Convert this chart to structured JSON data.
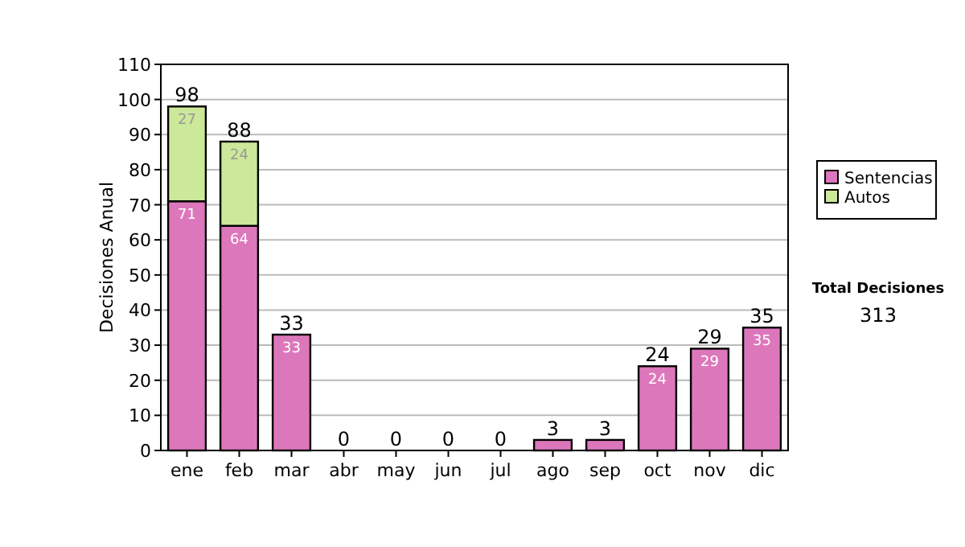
{
  "chart_data": {
    "type": "bar",
    "stacked": true,
    "ylabel": "Decisiones Anual",
    "categories": [
      "ene",
      "feb",
      "mar",
      "abr",
      "may",
      "jun",
      "jul",
      "ago",
      "sep",
      "oct",
      "nov",
      "dic"
    ],
    "series": [
      {
        "name": "Sentencias",
        "color": "#dd77bb",
        "values": [
          71,
          64,
          33,
          0,
          0,
          0,
          0,
          3,
          3,
          24,
          29,
          35
        ],
        "value_labels": [
          "71",
          "64",
          "33",
          null,
          null,
          null,
          null,
          null,
          null,
          "24",
          "29",
          "35"
        ]
      },
      {
        "name": "Autos",
        "color": "#cce899",
        "values": [
          27,
          24,
          0,
          0,
          0,
          0,
          0,
          0,
          0,
          0,
          0,
          0
        ],
        "value_labels": [
          "27",
          "24",
          null,
          null,
          null,
          null,
          null,
          null,
          null,
          null,
          null,
          null
        ]
      }
    ],
    "totals": [
      "98",
      "88",
      "33",
      "0",
      "0",
      "0",
      "0",
      "3",
      "3",
      "24",
      "29",
      "35"
    ],
    "ylim": [
      0,
      110
    ],
    "yticks": [
      0,
      10,
      20,
      30,
      40,
      50,
      60,
      70,
      80,
      90,
      100,
      110
    ],
    "grid": "y",
    "legend": "right",
    "annotations": [
      "Total Decisiones",
      "313"
    ]
  }
}
